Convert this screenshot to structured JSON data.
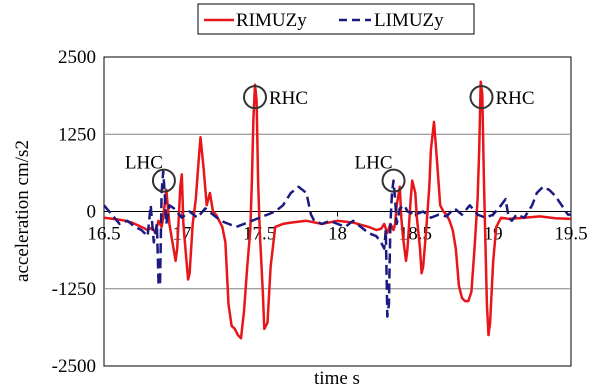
{
  "chart_data": {
    "type": "line",
    "xlabel": "time s",
    "ylabel": "acceleration cm/s2",
    "xlim": [
      16.5,
      19.5
    ],
    "ylim": [
      -2500,
      2500
    ],
    "x_ticks": [
      "16.5",
      "17",
      "17.5",
      "18",
      "18.5",
      "19",
      "19.5"
    ],
    "y_ticks": [
      "2500",
      "1250",
      "0",
      "-1250",
      "-2500"
    ],
    "grid": "horizontal",
    "legend_position": "top",
    "series": [
      {
        "name": "RIMUZy",
        "color": "#e8161b",
        "dash": "solid",
        "points": [
          [
            16.5,
            -100
          ],
          [
            16.56,
            -120
          ],
          [
            16.62,
            -140
          ],
          [
            16.68,
            -180
          ],
          [
            16.74,
            -250
          ],
          [
            16.78,
            -300
          ],
          [
            16.81,
            -260
          ],
          [
            16.83,
            -350
          ],
          [
            16.85,
            -150
          ],
          [
            16.87,
            -250
          ],
          [
            16.88,
            -100
          ],
          [
            16.9,
            350
          ],
          [
            16.92,
            -200
          ],
          [
            16.94,
            -500
          ],
          [
            16.96,
            -800
          ],
          [
            16.97,
            -600
          ],
          [
            16.99,
            400
          ],
          [
            17.0,
            600
          ],
          [
            17.01,
            -200
          ],
          [
            17.02,
            -500
          ],
          [
            17.04,
            -1100
          ],
          [
            17.05,
            -1000
          ],
          [
            17.07,
            -200
          ],
          [
            17.09,
            200
          ],
          [
            17.11,
            900
          ],
          [
            17.12,
            1200
          ],
          [
            17.14,
            700
          ],
          [
            17.16,
            100
          ],
          [
            17.18,
            300
          ],
          [
            17.2,
            0
          ],
          [
            17.22,
            -50
          ],
          [
            17.24,
            -150
          ],
          [
            17.26,
            -250
          ],
          [
            17.28,
            -500
          ],
          [
            17.3,
            -1500
          ],
          [
            17.32,
            -1850
          ],
          [
            17.34,
            -1900
          ],
          [
            17.36,
            -2000
          ],
          [
            17.38,
            -2050
          ],
          [
            17.4,
            -1600
          ],
          [
            17.42,
            -900
          ],
          [
            17.44,
            -300
          ],
          [
            17.45,
            500
          ],
          [
            17.46,
            1500
          ],
          [
            17.47,
            2050
          ],
          [
            17.48,
            1800
          ],
          [
            17.49,
            500
          ],
          [
            17.5,
            -300
          ],
          [
            17.52,
            -1300
          ],
          [
            17.53,
            -1900
          ],
          [
            17.55,
            -1800
          ],
          [
            17.57,
            -900
          ],
          [
            17.6,
            -250
          ],
          [
            17.65,
            -200
          ],
          [
            17.7,
            -180
          ],
          [
            17.8,
            -150
          ],
          [
            17.9,
            -200
          ],
          [
            18.0,
            -150
          ],
          [
            18.1,
            -180
          ],
          [
            18.2,
            -250
          ],
          [
            18.25,
            -300
          ],
          [
            18.28,
            -280
          ],
          [
            18.3,
            -200
          ],
          [
            18.32,
            -350
          ],
          [
            18.34,
            -200
          ],
          [
            18.36,
            -300
          ],
          [
            18.37,
            -200
          ],
          [
            18.38,
            100
          ],
          [
            18.4,
            400
          ],
          [
            18.41,
            -100
          ],
          [
            18.42,
            -400
          ],
          [
            18.44,
            -800
          ],
          [
            18.45,
            -600
          ],
          [
            18.47,
            200
          ],
          [
            18.48,
            500
          ],
          [
            18.5,
            300
          ],
          [
            18.51,
            -100
          ],
          [
            18.53,
            -600
          ],
          [
            18.54,
            -1000
          ],
          [
            18.55,
            -900
          ],
          [
            18.57,
            -300
          ],
          [
            18.59,
            400
          ],
          [
            18.6,
            1000
          ],
          [
            18.62,
            1450
          ],
          [
            18.64,
            800
          ],
          [
            18.66,
            100
          ],
          [
            18.68,
            0
          ],
          [
            18.7,
            -50
          ],
          [
            18.72,
            -150
          ],
          [
            18.74,
            -300
          ],
          [
            18.76,
            -600
          ],
          [
            18.78,
            -1200
          ],
          [
            18.8,
            -1400
          ],
          [
            18.82,
            -1450
          ],
          [
            18.84,
            -1450
          ],
          [
            18.86,
            -1300
          ],
          [
            18.88,
            -600
          ],
          [
            18.9,
            200
          ],
          [
            18.91,
            1000
          ],
          [
            18.92,
            2100
          ],
          [
            18.93,
            1900
          ],
          [
            18.94,
            600
          ],
          [
            18.95,
            -500
          ],
          [
            18.96,
            -1500
          ],
          [
            18.97,
            -2000
          ],
          [
            18.98,
            -1800
          ],
          [
            19.0,
            -800
          ],
          [
            19.02,
            -250
          ],
          [
            19.05,
            -100
          ],
          [
            19.1,
            -120
          ],
          [
            19.2,
            -100
          ],
          [
            19.3,
            -80
          ],
          [
            19.4,
            -110
          ],
          [
            19.5,
            -120
          ]
        ]
      },
      {
        "name": "LIMUZy",
        "color": "#1a1a80",
        "dash": "dashed",
        "points": [
          [
            16.5,
            100
          ],
          [
            16.55,
            -50
          ],
          [
            16.6,
            -200
          ],
          [
            16.65,
            -150
          ],
          [
            16.7,
            -250
          ],
          [
            16.74,
            -300
          ],
          [
            16.78,
            -400
          ],
          [
            16.8,
            100
          ],
          [
            16.82,
            -500
          ],
          [
            16.84,
            -200
          ],
          [
            16.85,
            -1150
          ],
          [
            16.86,
            -1200
          ],
          [
            16.87,
            300
          ],
          [
            16.88,
            650
          ],
          [
            16.89,
            300
          ],
          [
            16.9,
            -200
          ],
          [
            16.92,
            100
          ],
          [
            16.95,
            50
          ],
          [
            17.0,
            -100
          ],
          [
            17.05,
            0
          ],
          [
            17.1,
            -100
          ],
          [
            17.15,
            50
          ],
          [
            17.2,
            -50
          ],
          [
            17.25,
            -150
          ],
          [
            17.3,
            -200
          ],
          [
            17.35,
            -250
          ],
          [
            17.4,
            -200
          ],
          [
            17.45,
            -150
          ],
          [
            17.5,
            -100
          ],
          [
            17.55,
            -50
          ],
          [
            17.6,
            0
          ],
          [
            17.65,
            100
          ],
          [
            17.7,
            300
          ],
          [
            17.75,
            400
          ],
          [
            17.8,
            300
          ],
          [
            17.83,
            -50
          ],
          [
            17.85,
            -150
          ],
          [
            17.9,
            -200
          ],
          [
            17.95,
            -150
          ],
          [
            18.0,
            -200
          ],
          [
            18.05,
            -250
          ],
          [
            18.1,
            -150
          ],
          [
            18.15,
            -250
          ],
          [
            18.2,
            -350
          ],
          [
            18.25,
            -400
          ],
          [
            18.28,
            -500
          ],
          [
            18.3,
            -600
          ],
          [
            18.31,
            -300
          ],
          [
            18.32,
            -1700
          ],
          [
            18.33,
            -1500
          ],
          [
            18.34,
            -200
          ],
          [
            18.35,
            300
          ],
          [
            18.36,
            500
          ],
          [
            18.37,
            200
          ],
          [
            18.38,
            -200
          ],
          [
            18.4,
            50
          ],
          [
            18.43,
            100
          ],
          [
            18.45,
            0
          ],
          [
            18.5,
            -50
          ],
          [
            18.55,
            0
          ],
          [
            18.6,
            -100
          ],
          [
            18.65,
            -50
          ],
          [
            18.7,
            -80
          ],
          [
            18.75,
            50
          ],
          [
            18.8,
            -50
          ],
          [
            18.85,
            100
          ],
          [
            18.9,
            -50
          ],
          [
            18.95,
            -100
          ],
          [
            19.0,
            -50
          ],
          [
            19.05,
            100
          ],
          [
            19.08,
            200
          ],
          [
            19.1,
            -100
          ],
          [
            19.12,
            -150
          ],
          [
            19.15,
            -50
          ],
          [
            19.2,
            -100
          ],
          [
            19.25,
            100
          ],
          [
            19.28,
            300
          ],
          [
            19.32,
            400
          ],
          [
            19.36,
            350
          ],
          [
            19.4,
            250
          ],
          [
            19.44,
            100
          ],
          [
            19.48,
            -50
          ],
          [
            19.5,
            -50
          ]
        ]
      }
    ],
    "annotations": [
      {
        "label": "LHC",
        "x": 16.885,
        "y": 500
      },
      {
        "label": "RHC",
        "x": 17.47,
        "y": 1850
      },
      {
        "label": "LHC",
        "x": 18.36,
        "y": 500
      },
      {
        "label": "RHC",
        "x": 18.925,
        "y": 1850
      }
    ]
  }
}
